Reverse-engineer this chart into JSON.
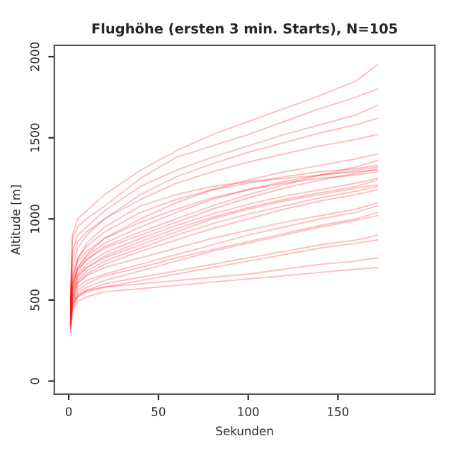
{
  "chart_data": {
    "type": "line",
    "title": "Flughöhe (ersten 3 min. Starts), N=105",
    "xlabel": "Sekunden",
    "ylabel": "Altitude [m]",
    "x": [
      1,
      2,
      5,
      10,
      20,
      40,
      60,
      80,
      100,
      120,
      140,
      160,
      172
    ],
    "xlim": [
      -8,
      204
    ],
    "ylim": [
      -80,
      2070
    ],
    "xticks": [
      0,
      50,
      100,
      150
    ],
    "yticks": [
      0,
      500,
      1000,
      1500,
      2000
    ],
    "grid": false,
    "line_style": "solid",
    "marker": "none",
    "series": [
      {
        "color": "#ff0000",
        "values": [
          350,
          500,
          600,
          650,
          700,
          760,
          820,
          880,
          930,
          980,
          1020,
          1060,
          1100
        ]
      },
      {
        "color": "#ff0000",
        "values": [
          400,
          550,
          650,
          700,
          760,
          840,
          920,
          1000,
          1060,
          1110,
          1150,
          1190,
          1210
        ]
      },
      {
        "color": "#ff0000",
        "values": [
          300,
          450,
          520,
          560,
          600,
          640,
          680,
          720,
          760,
          800,
          840,
          870,
          900
        ]
      },
      {
        "color": "#ff0000",
        "values": [
          450,
          600,
          700,
          780,
          880,
          1000,
          1100,
          1180,
          1240,
          1290,
          1330,
          1370,
          1400
        ]
      },
      {
        "color": "#ff0000",
        "values": [
          500,
          800,
          900,
          950,
          1050,
          1200,
          1300,
          1380,
          1450,
          1520,
          1580,
          1640,
          1700
        ]
      },
      {
        "color": "#ff0000",
        "values": [
          380,
          480,
          530,
          560,
          580,
          600,
          620,
          640,
          660,
          690,
          720,
          740,
          760
        ]
      },
      {
        "color": "#ff0000",
        "values": [
          420,
          620,
          750,
          850,
          950,
          1080,
          1150,
          1200,
          1230,
          1250,
          1270,
          1290,
          1300
        ]
      },
      {
        "color": "#ff0000",
        "values": [
          350,
          520,
          620,
          680,
          740,
          820,
          900,
          970,
          1030,
          1080,
          1130,
          1170,
          1200
        ]
      },
      {
        "color": "#ff0000",
        "values": [
          450,
          880,
          950,
          1000,
          1080,
          1250,
          1380,
          1450,
          1520,
          1600,
          1680,
          1750,
          1800
        ]
      },
      {
        "color": "#ff0000",
        "values": [
          330,
          460,
          520,
          550,
          580,
          620,
          660,
          700,
          740,
          780,
          820,
          850,
          870
        ]
      },
      {
        "color": "#ff0000",
        "values": [
          400,
          580,
          680,
          750,
          820,
          900,
          980,
          1060,
          1130,
          1190,
          1240,
          1280,
          1310
        ]
      },
      {
        "color": "#ff0000",
        "values": [
          470,
          650,
          760,
          830,
          920,
          1040,
          1120,
          1180,
          1220,
          1260,
          1290,
          1310,
          1330
        ]
      },
      {
        "color": "#ff0000",
        "values": [
          360,
          500,
          580,
          620,
          660,
          720,
          780,
          840,
          900,
          950,
          1000,
          1040,
          1080
        ]
      },
      {
        "color": "#ff0000",
        "values": [
          500,
          700,
          820,
          900,
          1000,
          1150,
          1260,
          1340,
          1410,
          1470,
          1530,
          1580,
          1620
        ]
      },
      {
        "color": "#ff0000",
        "values": [
          300,
          430,
          490,
          520,
          550,
          570,
          590,
          610,
          630,
          650,
          670,
          690,
          700
        ]
      },
      {
        "color": "#ff0000",
        "values": [
          420,
          600,
          700,
          770,
          850,
          950,
          1040,
          1120,
          1180,
          1230,
          1270,
          1300,
          1320
        ]
      },
      {
        "color": "#ff0000",
        "values": [
          380,
          540,
          640,
          700,
          770,
          860,
          940,
          1010,
          1070,
          1120,
          1160,
          1200,
          1240
        ]
      },
      {
        "color": "#ff0000",
        "values": [
          520,
          900,
          1000,
          1050,
          1150,
          1300,
          1420,
          1520,
          1600,
          1680,
          1760,
          1850,
          1950
        ]
      },
      {
        "color": "#ff0000",
        "values": [
          400,
          560,
          660,
          720,
          790,
          880,
          960,
          1030,
          1090,
          1140,
          1180,
          1220,
          1250
        ]
      },
      {
        "color": "#ff0000",
        "values": [
          350,
          480,
          560,
          600,
          650,
          700,
          760,
          810,
          860,
          910,
          960,
          1000,
          1040
        ]
      },
      {
        "color": "#ff0000",
        "values": [
          450,
          640,
          740,
          800,
          880,
          980,
          1060,
          1130,
          1180,
          1220,
          1250,
          1270,
          1290
        ]
      },
      {
        "color": "#ff0000",
        "values": [
          370,
          520,
          610,
          660,
          720,
          800,
          870,
          940,
          1000,
          1060,
          1110,
          1150,
          1180
        ]
      },
      {
        "color": "#ff0000",
        "values": [
          480,
          760,
          860,
          920,
          1000,
          1120,
          1220,
          1290,
          1350,
          1400,
          1450,
          1490,
          1520
        ]
      },
      {
        "color": "#ff0000",
        "values": [
          330,
          470,
          540,
          580,
          620,
          680,
          740,
          800,
          850,
          900,
          950,
          990,
          1020
        ]
      },
      {
        "color": "#ff0000",
        "values": [
          410,
          590,
          690,
          750,
          830,
          920,
          1000,
          1080,
          1150,
          1210,
          1270,
          1320,
          1360
        ]
      }
    ]
  }
}
